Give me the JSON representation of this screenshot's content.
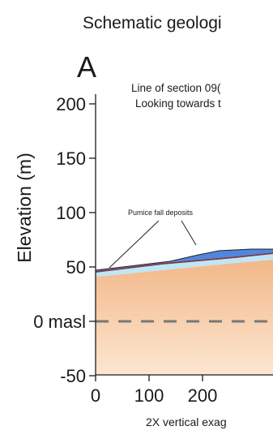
{
  "figure": {
    "title": "Schematic geologi",
    "panel_label": "A",
    "section_line": "Line of section 09(",
    "looking": "Looking towards t",
    "callout": "Pumice fall deposits",
    "footer": "2X vertical exag"
  },
  "axis": {
    "ylabel": "Elevation (m)",
    "yticks": [
      {
        "value": 200,
        "label": "200"
      },
      {
        "value": 150,
        "label": "150"
      },
      {
        "value": 100,
        "label": "100"
      },
      {
        "value": 50,
        "label": "50"
      },
      {
        "value": 0,
        "label": "0 masl"
      },
      {
        "value": -50,
        "label": "-50"
      }
    ],
    "xticks": [
      {
        "value": 0,
        "label": "0"
      },
      {
        "value": 100,
        "label": "100"
      },
      {
        "value": 200,
        "label": "200"
      }
    ]
  },
  "colors": {
    "sediment_top": "#f2b889",
    "sediment_bottom": "#fde6d2",
    "pumice": "#4f86e0",
    "layer_light": "#bfe6f5",
    "layer_red": "#7a3a48",
    "sea_level_line": "#777777"
  }
}
